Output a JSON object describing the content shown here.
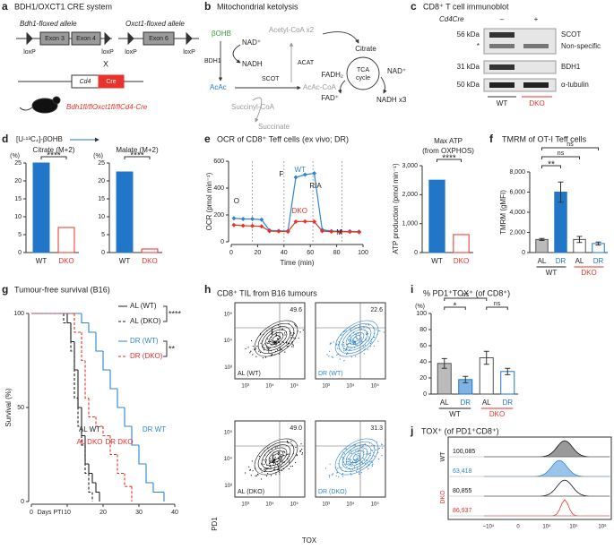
{
  "figure": {
    "panel_labels": [
      "a",
      "b",
      "c",
      "d",
      "e",
      "f",
      "g",
      "h",
      "i",
      "j"
    ],
    "a": {
      "title": "BDH1/OXCT1 CRE system",
      "bdh1_allele": "Bdh1-floxed allele",
      "exon3": "Exon 3",
      "exon4": "Exon 4",
      "oxct1_allele": "Oxct1-floxed allele",
      "exon6": "Exon 6",
      "loxp": "loxP",
      "cross": "X",
      "cd4": "Cd4",
      "cre": "Cre",
      "mouse": "Bdh1fl/flOxct1fl/flCd4-Cre"
    },
    "b": {
      "title": "Mitochondrial ketolysis",
      "bohb": "βOHB",
      "nad": "NAD⁺",
      "nadh": "NADH",
      "bdh1": "BDH1",
      "acac": "AcAc",
      "scot": "SCOT",
      "acac_coa": "AcAc-CoA",
      "succinyl_coa": "Succinyl-CoA",
      "succinate": "Succinate",
      "acat": "ACAT",
      "acetyl_coa": "Acetyl-CoA x2",
      "citrate": "Citrate",
      "tca_1": "TCA",
      "tca_2": "cycle",
      "fadh2": "FADH₂",
      "fad": "FAD⁺",
      "nad_tca": "NAD⁺",
      "nadh3": "NADH x3"
    },
    "c": {
      "title": "CD8⁺ T cell immunoblot",
      "genotype": "Cd4Cre",
      "minus": "–",
      "plus": "+",
      "mw": [
        "56 kDa",
        "*",
        "31 kDa",
        "50 kDa"
      ],
      "bands": [
        "SCOT",
        "Non-specific",
        "BDH1",
        "α-tubulin"
      ],
      "groups": [
        "WT",
        "DKO"
      ]
    },
    "d": {
      "tracer": "[U-¹³C₄]-βOHB"
    },
    "h": {
      "title": "CD8⁺ TIL from B16 tumours",
      "plots": [
        {
          "label": "AL (WT)",
          "quadrant": "49.6"
        },
        {
          "label": "DR (WT)",
          "quadrant": "22.6"
        },
        {
          "label": "AL (DKO)",
          "quadrant": "49.0"
        },
        {
          "label": "DR (DKO)",
          "quadrant": "31.3"
        }
      ],
      "ticks": [
        "10³",
        "10⁴",
        "10⁵"
      ],
      "ylabel": "PD1",
      "xlabel": "TOX"
    },
    "j": {
      "title": "TOX⁺ (of PD1⁺CD8⁺)",
      "values": [
        "100,085",
        "63,418",
        "80,855",
        "86,937"
      ],
      "groups": [
        "WT",
        "DKO"
      ],
      "ticks": [
        "−10⁴",
        "0",
        "10⁴",
        "10⁵",
        "10⁶"
      ]
    }
  },
  "chart_data": [
    {
      "type": "bar",
      "title": "Citrate (M+2)",
      "ylabel": "(%)",
      "categories": [
        "WT",
        "DKO"
      ],
      "values": [
        25,
        7
      ],
      "colors": [
        "#2176c7",
        "#ffffff"
      ],
      "edge_colors": [
        "#2176c7",
        "#e8322b"
      ],
      "label_colors": [
        "#222222",
        "#e8322b"
      ],
      "ylim": [
        0,
        25
      ],
      "yticks": [
        0,
        5,
        10,
        15,
        20,
        25
      ],
      "significance": [
        "****"
      ]
    },
    {
      "type": "bar",
      "title": "Malate (M+2)",
      "ylabel": "(%)",
      "categories": [
        "WT",
        "DKO"
      ],
      "values": [
        22.5,
        1
      ],
      "colors": [
        "#2176c7",
        "#ffffff"
      ],
      "edge_colors": [
        "#2176c7",
        "#e8322b"
      ],
      "label_colors": [
        "#222222",
        "#e8322b"
      ],
      "ylim": [
        0,
        25
      ],
      "yticks": [
        0,
        5,
        10,
        15,
        20,
        25
      ],
      "significance": [
        "****"
      ]
    },
    {
      "type": "line",
      "title": "OCR of CD8⁺ Teff cells (ex vivo; DR)",
      "ylabel": "OCR (pmol min⁻¹)",
      "xlabel": "Time (min)",
      "x": [
        2,
        9,
        16,
        23,
        29,
        36,
        43,
        49,
        56,
        63,
        69,
        76,
        83,
        90,
        97
      ],
      "series": [
        {
          "name": "WT",
          "color": "#2f86d0",
          "values": [
            175,
            170,
            170,
            165,
            85,
            82,
            80,
            480,
            500,
            510,
            90,
            80,
            78,
            78,
            76
          ]
        },
        {
          "name": "DKO",
          "color": "#e8322b",
          "values": [
            125,
            120,
            118,
            115,
            80,
            78,
            76,
            150,
            152,
            150,
            80,
            76,
            75,
            74,
            72
          ]
        }
      ],
      "annotations": [
        "O",
        "F",
        "R/A",
        "M"
      ],
      "xlim": [
        0,
        100
      ],
      "xticks": [
        0,
        20,
        40,
        60,
        80,
        100
      ],
      "ylim": [
        0,
        600
      ],
      "yticks": [
        0,
        200,
        400,
        600
      ]
    },
    {
      "type": "bar",
      "title": [
        "Max ATP",
        "(from OXPHOS)"
      ],
      "ylabel": "ATP production (pmol min⁻¹)",
      "categories": [
        "WT",
        "DKO"
      ],
      "values": [
        2500,
        620
      ],
      "colors": [
        "#2176c7",
        "#ffffff"
      ],
      "edge_colors": [
        "#2176c7",
        "#e8322b"
      ],
      "label_colors": [
        "#222222",
        "#e8322b"
      ],
      "ylim": [
        0,
        3000
      ],
      "yticks": [
        0,
        {
          "value": 1000,
          "label": "1,000"
        },
        {
          "value": 2000,
          "label": "2,000"
        },
        {
          "value": 3000,
          "label": "3,000"
        }
      ],
      "significance": [
        "****"
      ]
    },
    {
      "type": "bar",
      "title": "TMRM of OT-I Teff cells",
      "ylabel": "TMRM (gMFI)",
      "categories": [
        "AL",
        "DR",
        "AL",
        "DR"
      ],
      "groups": [
        "WT",
        "DKO"
      ],
      "group_colors": [
        "#222222",
        "#e8322b"
      ],
      "values": [
        1300,
        6000,
        1300,
        900
      ],
      "errors": [
        100,
        1000,
        300,
        150
      ],
      "colors": [
        "#bbbbbb",
        "#2176c7",
        "#ffffff",
        "#ffffff"
      ],
      "edge_colors": [
        "#555555",
        "#2176c7",
        "#555555",
        "#2176c7"
      ],
      "label_colors": [
        "#222222",
        "#2176c7",
        "#222222",
        "#2176c7"
      ],
      "ylim": [
        0,
        8000
      ],
      "yticks": [
        0,
        {
          "value": 2000,
          "label": "2,000"
        },
        {
          "value": 4000,
          "label": "4,000"
        },
        {
          "value": 6000,
          "label": "6,000"
        },
        {
          "value": 8000,
          "label": "8,000"
        }
      ],
      "significance": [
        "**",
        "ns",
        "ns"
      ]
    },
    {
      "type": "step",
      "title": "Tumour-free survival (B16)",
      "ylabel": "Survival (%)",
      "xlabel": "Days PTI",
      "series": [
        {
          "name": "AL (WT)",
          "color": "#222222",
          "dashed": false,
          "x": [
            0,
            10,
            11,
            12,
            13,
            14,
            15,
            16,
            17,
            18,
            19
          ],
          "values": [
            100,
            95,
            85,
            70,
            50,
            35,
            20,
            15,
            10,
            5,
            0
          ]
        },
        {
          "name": "AL (DKO)",
          "color": "#222222",
          "dashed": true,
          "x": [
            0,
            9,
            11,
            12,
            13,
            14,
            15,
            16,
            17
          ],
          "values": [
            100,
            95,
            80,
            55,
            40,
            30,
            15,
            5,
            0
          ]
        },
        {
          "name": "DR (WT)",
          "color": "#2f86d0",
          "dashed": false,
          "x": [
            0,
            14,
            16,
            18,
            20,
            22,
            24,
            26,
            28,
            30,
            32,
            34,
            37
          ],
          "values": [
            100,
            95,
            90,
            80,
            70,
            60,
            50,
            40,
            30,
            20,
            10,
            5,
            0
          ]
        },
        {
          "name": "DR (DKO)",
          "color": "#e8322b",
          "dashed": true,
          "x": [
            0,
            12,
            14,
            15,
            16,
            18,
            20,
            22,
            24,
            26,
            28
          ],
          "values": [
            100,
            90,
            75,
            55,
            45,
            40,
            35,
            25,
            15,
            8,
            0
          ]
        }
      ],
      "annotations": [
        "AL WT",
        "AL DKO",
        "DR DKO",
        "DR WT"
      ],
      "significance": [
        "****",
        "**"
      ],
      "xlim": [
        0,
        40
      ],
      "xticks": [
        0,
        10,
        20,
        30,
        40
      ],
      "ylim": [
        0,
        100
      ],
      "yticks": [
        0,
        50,
        100
      ]
    },
    {
      "type": "bar",
      "title": "% PD1⁺TOX⁺ (of CD8⁺)",
      "ylabel": "(%)",
      "categories": [
        "AL",
        "DR",
        "AL",
        "DR"
      ],
      "groups": [
        "WT",
        "DKO"
      ],
      "group_colors": [
        "#222222",
        "#e8322b"
      ],
      "values": [
        38,
        18,
        45,
        28
      ],
      "errors": [
        6,
        4,
        8,
        4
      ],
      "colors": [
        "#bbbbbb",
        "#7fb3e3",
        "#ffffff",
        "#ffffff"
      ],
      "edge_colors": [
        "#555555",
        "#2176c7",
        "#555555",
        "#2176c7"
      ],
      "label_colors": [
        "#222222",
        "#2176c7",
        "#222222",
        "#2176c7"
      ],
      "ylim": [
        0,
        100
      ],
      "yticks": [
        0,
        20,
        40,
        60,
        80,
        100
      ],
      "significance": [
        "*",
        "ns",
        "ns"
      ]
    }
  ]
}
